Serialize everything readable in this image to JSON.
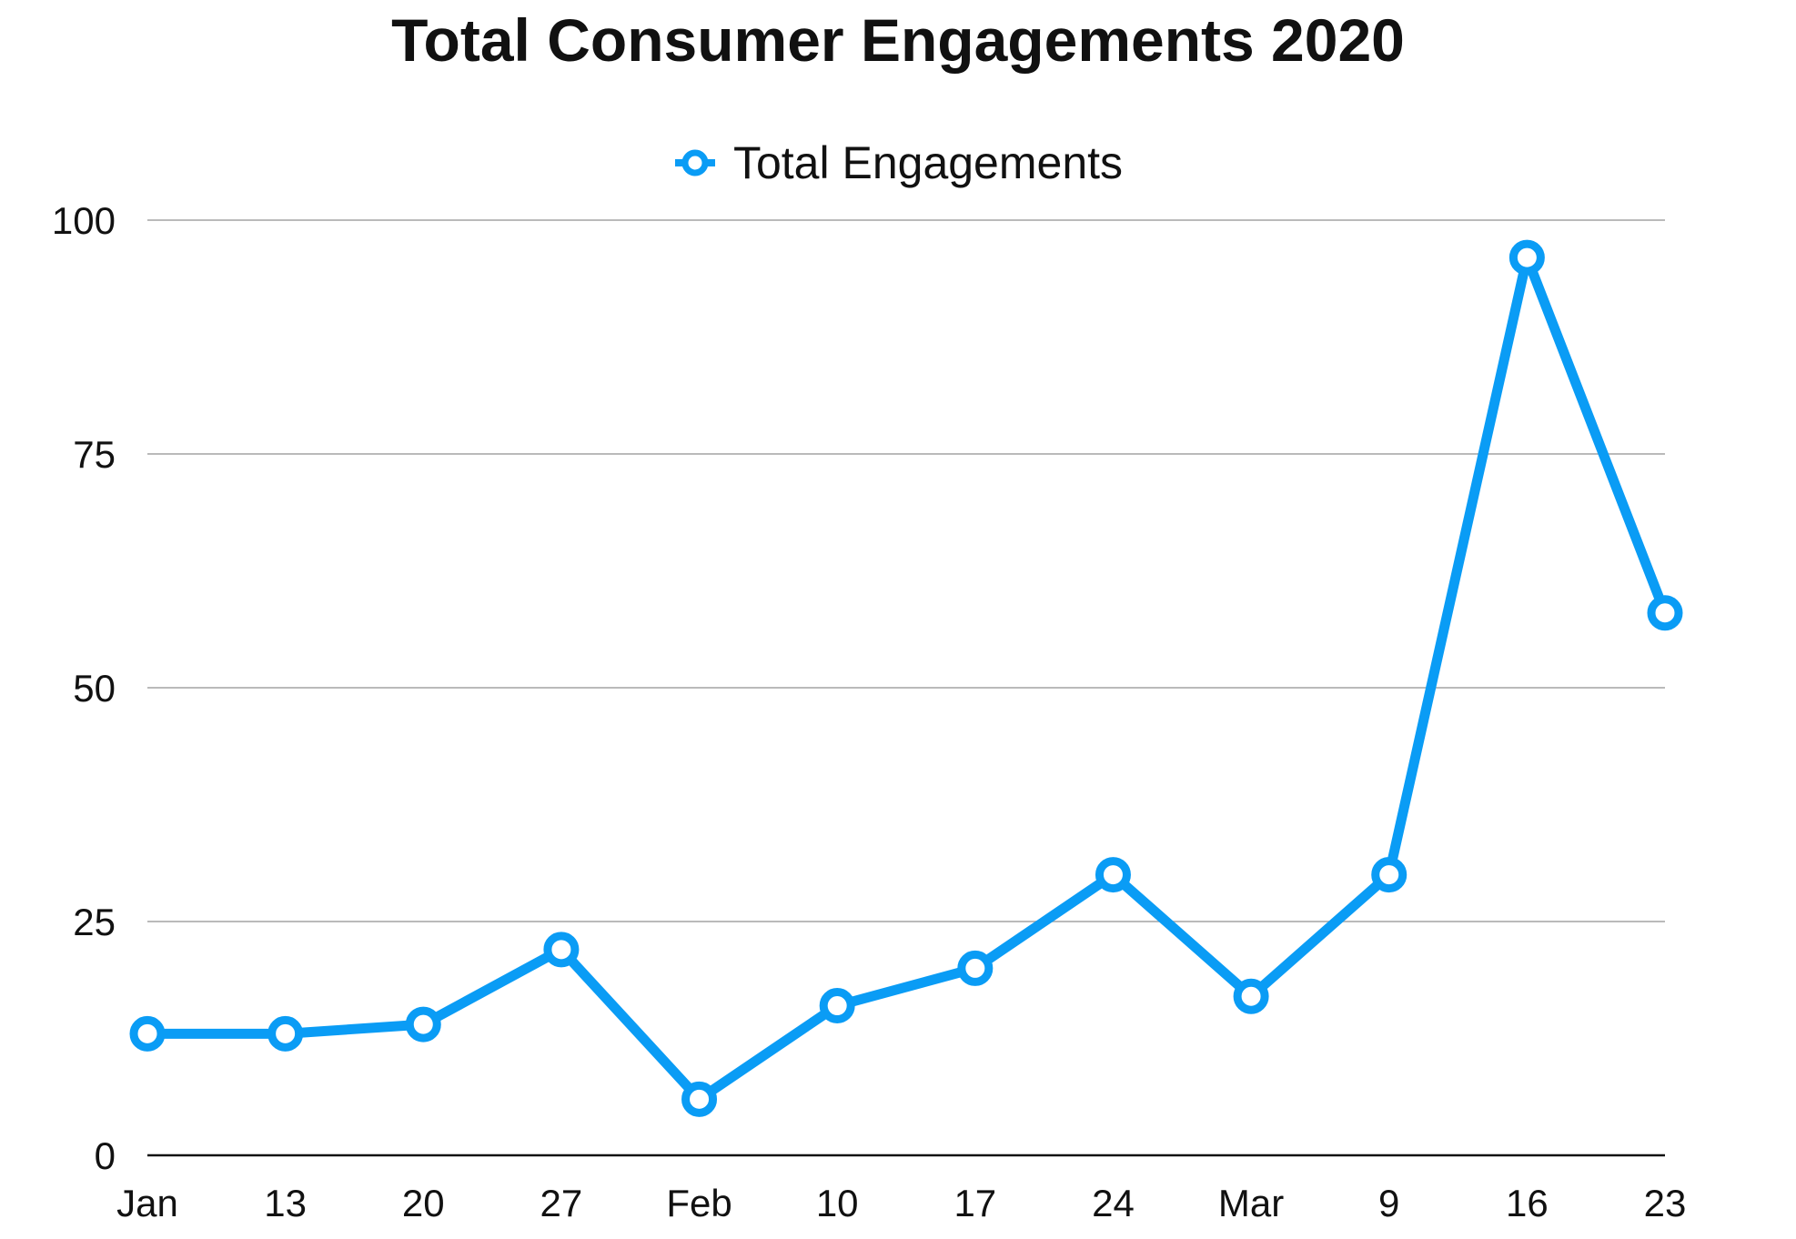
{
  "chart_data": {
    "type": "line",
    "title": "Total Consumer Engagements 2020",
    "categories": [
      "Jan",
      "13",
      "20",
      "27",
      "Feb",
      "10",
      "17",
      "24",
      "Mar",
      "9",
      "16",
      "23"
    ],
    "series": [
      {
        "name": "Total Engagements",
        "values": [
          13,
          13,
          14,
          22,
          6,
          16,
          20,
          30,
          17,
          30,
          96,
          58
        ],
        "color": "#0a9cf5"
      }
    ],
    "y_ticks": [
      "0",
      "25",
      "50",
      "75",
      "100"
    ],
    "ylim": [
      0,
      100
    ],
    "grid": true,
    "legend_position": "top-center",
    "marker": "hollow-circle"
  }
}
